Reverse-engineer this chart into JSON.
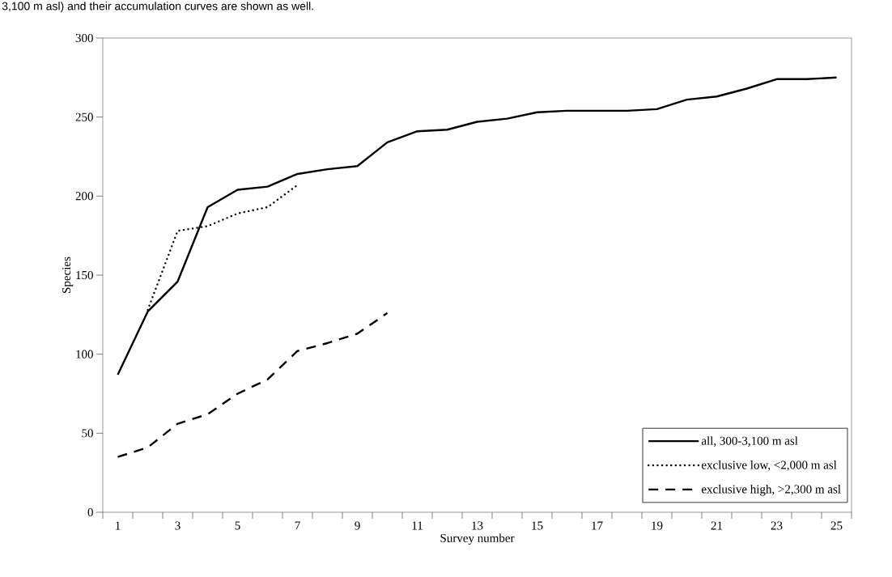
{
  "chart_data": {
    "type": "line",
    "annotations": [
      "3,100 m asl) and their accumulation curves are shown as well."
    ],
    "xlabel": "Survey number",
    "ylabel": "Species",
    "categories": [
      "1",
      null,
      "3",
      null,
      "5",
      null,
      "7",
      null,
      "9",
      null,
      "11",
      null,
      "13",
      null,
      "15",
      null,
      "17",
      null,
      "19",
      null,
      "21",
      null,
      "23",
      null,
      "25"
    ],
    "series": [
      {
        "name": "all, 300-3,100 m asl",
        "color": "#000000",
        "line_style": "solid",
        "values": [
          87,
          127,
          146,
          193,
          204,
          206,
          214,
          217,
          219,
          234,
          241,
          242,
          247,
          249,
          253,
          254,
          254,
          254,
          255,
          261,
          263,
          268,
          274,
          274,
          275
        ]
      },
      {
        "name": "exclusive low, <2,000 m asl",
        "color": "#000000",
        "line_style": "dotted",
        "values": [
          null,
          128,
          178,
          181,
          189,
          193,
          207,
          null,
          null,
          null,
          null,
          null,
          null,
          null,
          null,
          null,
          null,
          null,
          null,
          null,
          null,
          null,
          null,
          null,
          null
        ]
      },
      {
        "name": "exclusive high, >2,300 m asl",
        "color": "#000000",
        "line_style": "dashed",
        "values": [
          35,
          41,
          56,
          62,
          75,
          84,
          102,
          107,
          113,
          126,
          null,
          null,
          null,
          null,
          null,
          null,
          null,
          null,
          null,
          null,
          null,
          null,
          null,
          null,
          null
        ]
      }
    ],
    "ylim": [
      0,
      300
    ],
    "yticks": [
      0,
      50,
      100,
      150,
      200,
      250,
      300
    ],
    "grid": false,
    "legend": "bottom right",
    "marker": "none"
  }
}
